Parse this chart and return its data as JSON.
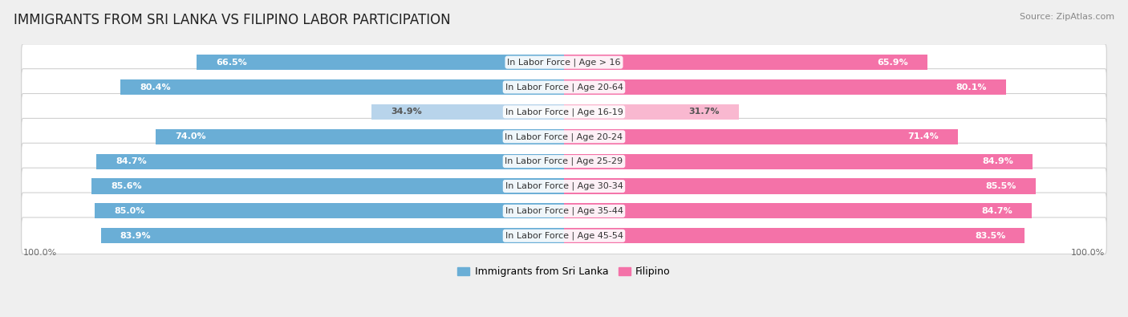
{
  "title": "IMMIGRANTS FROM SRI LANKA VS FILIPINO LABOR PARTICIPATION",
  "source": "Source: ZipAtlas.com",
  "categories": [
    "In Labor Force | Age > 16",
    "In Labor Force | Age 20-64",
    "In Labor Force | Age 16-19",
    "In Labor Force | Age 20-24",
    "In Labor Force | Age 25-29",
    "In Labor Force | Age 30-34",
    "In Labor Force | Age 35-44",
    "In Labor Force | Age 45-54"
  ],
  "sri_lanka_values": [
    66.5,
    80.4,
    34.9,
    74.0,
    84.7,
    85.6,
    85.0,
    83.9
  ],
  "filipino_values": [
    65.9,
    80.1,
    31.7,
    71.4,
    84.9,
    85.5,
    84.7,
    83.5
  ],
  "sri_lanka_color": "#6aaed6",
  "sri_lanka_color_light": "#b8d4eb",
  "filipino_color": "#f472a8",
  "filipino_color_light": "#f9b8d0",
  "background_color": "#efefef",
  "row_bg_color_odd": "#f9f9f9",
  "row_bg_color_even": "#f0f0f0",
  "row_border_color": "#d8d8d8",
  "title_fontsize": 12,
  "label_fontsize": 8,
  "value_fontsize": 8,
  "legend_fontsize": 9,
  "source_fontsize": 8
}
